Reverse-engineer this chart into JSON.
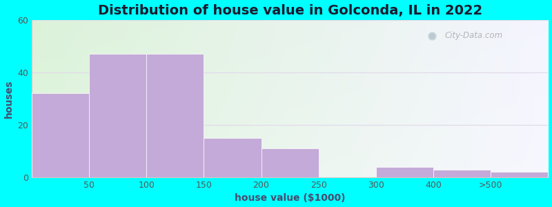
{
  "title": "Distribution of house value in Golconda, IL in 2022",
  "xlabel": "house value ($1000)",
  "ylabel": "houses",
  "background_color": "#00FFFF",
  "bar_color": "#c4aad8",
  "values": [
    32,
    47,
    47,
    15,
    11,
    0,
    4,
    3,
    2
  ],
  "tick_labels": [
    "50",
    "100",
    "150",
    "200",
    "250",
    "300",
    "400",
    ">500"
  ],
  "ylim": [
    0,
    60
  ],
  "yticks": [
    0,
    20,
    40,
    60
  ],
  "title_fontsize": 14,
  "axis_label_fontsize": 10,
  "tick_fontsize": 9,
  "watermark_text": "City-Data.com",
  "gradient_colors_lr": [
    "#d8efd8",
    "#f0f0fa"
  ],
  "gradient_colors_tb": [
    "#e8f5e0",
    "#f8f8ff"
  ],
  "grid_color": "#e0d8e8",
  "n_bins": 9
}
